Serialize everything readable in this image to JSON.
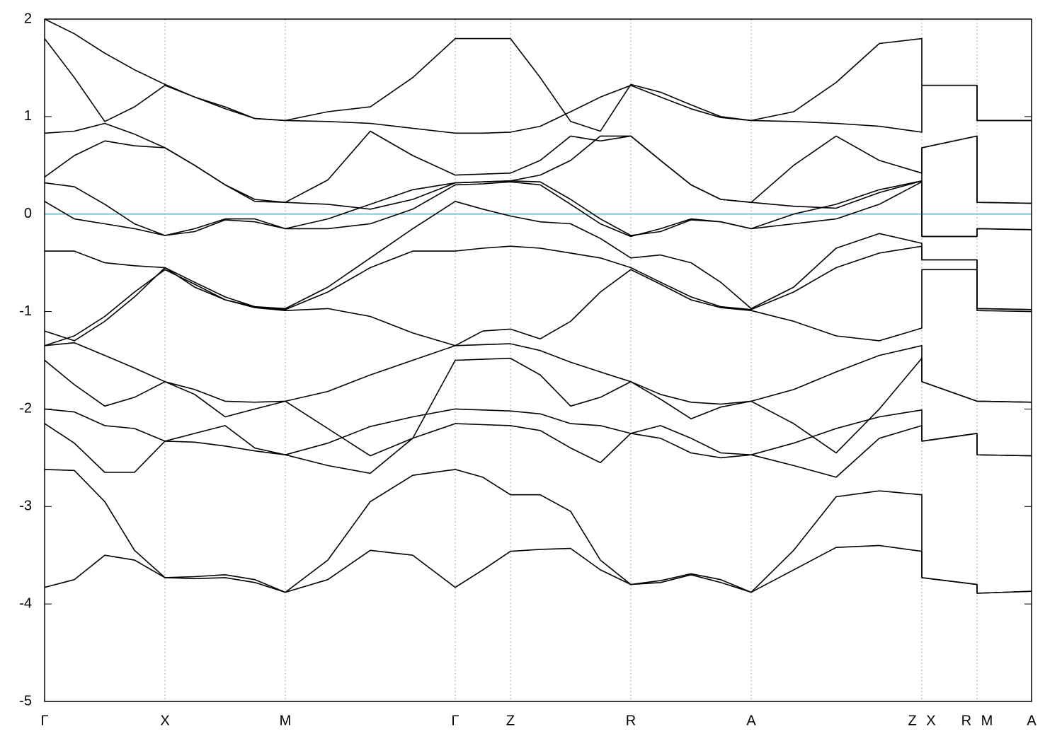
{
  "chart_data": {
    "type": "line",
    "color": "#000000",
    "hline": 0,
    "hline_color": "#5fb3c8",
    "grid": true,
    "xlim": [
      0,
      1394
    ],
    "xticks": [
      {
        "value": 0,
        "label": "Γ"
      },
      {
        "value": 170,
        "label": "X"
      },
      {
        "value": 340,
        "label": "M"
      },
      {
        "value": 580,
        "label": "Γ"
      },
      {
        "value": 658,
        "label": "Z"
      },
      {
        "value": 828,
        "label": "R"
      },
      {
        "value": 998,
        "label": "A"
      },
      {
        "value": 1239,
        "label": "Z X"
      },
      {
        "value": 1317,
        "label": "R M"
      },
      {
        "value": 1394,
        "label": "A"
      }
    ],
    "ylim": [
      -5,
      2
    ],
    "yticks": [
      -5,
      -4,
      -3,
      -2,
      -1,
      0,
      1,
      2
    ],
    "x": [
      0,
      42,
      85,
      127,
      170,
      212,
      255,
      297,
      340,
      400,
      460,
      520,
      580,
      619,
      658,
      700,
      743,
      785,
      828,
      870,
      913,
      955,
      998,
      1058,
      1118,
      1179,
      1239,
      1239,
      1317,
      1317,
      1394
    ],
    "series": [
      {
        "values": [
          -3.83,
          -3.75,
          -3.5,
          -3.55,
          -3.73,
          -3.72,
          -3.7,
          -3.75,
          -3.88,
          -3.75,
          -3.45,
          -3.5,
          -3.83,
          -3.65,
          -3.46,
          -3.44,
          -3.43,
          -3.65,
          -3.8,
          -3.76,
          -3.69,
          -3.75,
          -3.88,
          -3.65,
          -3.42,
          -3.4,
          -3.46,
          -3.73,
          -3.8,
          -3.89,
          -3.87
        ]
      },
      {
        "values": [
          -2.62,
          -2.63,
          -2.95,
          -3.45,
          -3.73,
          -3.74,
          -3.73,
          -3.78,
          -3.88,
          -3.55,
          -2.95,
          -2.68,
          -2.62,
          -2.7,
          -2.88,
          -2.88,
          -3.05,
          -3.55,
          -3.8,
          -3.78,
          -3.7,
          -3.78,
          -3.88,
          -3.45,
          -2.9,
          -2.84,
          -2.88,
          -3.73,
          -3.8,
          -3.89,
          -3.87
        ]
      },
      {
        "values": [
          -2.15,
          -2.35,
          -2.65,
          -2.65,
          -2.33,
          -2.34,
          -2.38,
          -2.43,
          -2.47,
          -2.58,
          -2.66,
          -2.3,
          -2.15,
          -2.16,
          -2.17,
          -2.22,
          -2.4,
          -2.55,
          -2.25,
          -2.3,
          -2.45,
          -2.5,
          -2.47,
          -2.58,
          -2.7,
          -2.3,
          -2.17,
          -2.33,
          -2.25,
          -2.47,
          -2.48
        ]
      },
      {
        "values": [
          -2.0,
          -2.03,
          -2.17,
          -2.2,
          -2.33,
          -2.25,
          -2.17,
          -2.4,
          -2.47,
          -2.35,
          -2.18,
          -2.08,
          -2.0,
          -2.01,
          -2.02,
          -2.05,
          -2.15,
          -2.17,
          -2.25,
          -2.17,
          -2.3,
          -2.45,
          -2.47,
          -2.35,
          -2.2,
          -2.08,
          -2.01,
          -2.33,
          -2.25,
          -2.47,
          -2.48
        ]
      },
      {
        "values": [
          -1.5,
          -1.75,
          -1.97,
          -1.88,
          -1.72,
          -1.8,
          -1.92,
          -1.93,
          -1.92,
          -1.82,
          -1.65,
          -1.5,
          -1.35,
          -1.34,
          -1.33,
          -1.4,
          -1.52,
          -1.62,
          -1.72,
          -1.85,
          -1.93,
          -1.95,
          -1.92,
          -1.8,
          -1.62,
          -1.45,
          -1.35,
          -1.72,
          -1.92,
          -1.92,
          -1.93
        ]
      },
      {
        "values": [
          -1.35,
          -1.32,
          -1.45,
          -1.58,
          -1.72,
          -1.85,
          -2.08,
          -2.0,
          -1.92,
          -2.2,
          -2.48,
          -2.3,
          -1.5,
          -1.49,
          -1.48,
          -1.65,
          -1.97,
          -1.88,
          -1.72,
          -1.9,
          -2.1,
          -1.98,
          -1.92,
          -2.15,
          -2.45,
          -2.0,
          -1.48,
          -1.72,
          -1.92,
          -1.92,
          -1.93
        ]
      },
      {
        "values": [
          -1.2,
          -1.3,
          -1.1,
          -0.85,
          -0.55,
          -0.7,
          -0.85,
          -0.95,
          -0.98,
          -0.8,
          -0.55,
          -0.38,
          -0.38,
          -0.35,
          -0.33,
          -0.35,
          -0.4,
          -0.45,
          -0.55,
          -0.7,
          -0.85,
          -0.95,
          -0.98,
          -0.8,
          -0.55,
          -0.4,
          -0.33,
          -0.47,
          -0.47,
          -0.97,
          -0.98
        ]
      },
      {
        "values": [
          -1.35,
          -1.25,
          -1.05,
          -0.8,
          -0.57,
          -0.72,
          -0.88,
          -0.96,
          -0.99,
          -0.97,
          -1.05,
          -1.22,
          -1.35,
          -1.2,
          -1.18,
          -1.28,
          -1.1,
          -0.8,
          -0.57,
          -0.72,
          -0.88,
          -0.96,
          -0.99,
          -1.1,
          -1.25,
          -1.3,
          -1.17,
          -0.57,
          -0.57,
          -0.99,
          -1.0
        ]
      },
      {
        "values": [
          -0.38,
          -0.38,
          -0.5,
          -0.53,
          -0.55,
          -0.75,
          -0.88,
          -0.95,
          -0.97,
          -0.75,
          -0.45,
          -0.15,
          0.13,
          0.05,
          -0.02,
          -0.08,
          -0.1,
          -0.25,
          -0.45,
          -0.42,
          -0.5,
          -0.7,
          -0.97,
          -0.75,
          -0.35,
          -0.2,
          -0.3,
          -0.47,
          -0.47,
          -0.97,
          -0.98
        ]
      },
      {
        "values": [
          0.13,
          -0.05,
          -0.1,
          -0.15,
          -0.22,
          -0.15,
          -0.05,
          -0.05,
          -0.15,
          -0.15,
          -0.1,
          0.05,
          0.3,
          0.31,
          0.33,
          0.3,
          0.1,
          -0.1,
          -0.23,
          -0.15,
          -0.05,
          -0.08,
          -0.15,
          -0.1,
          -0.05,
          0.1,
          0.33,
          -0.23,
          -0.23,
          -0.15,
          -0.16
        ]
      },
      {
        "values": [
          0.32,
          0.28,
          0.1,
          -0.1,
          -0.22,
          -0.18,
          -0.06,
          -0.08,
          -0.15,
          -0.05,
          0.1,
          0.25,
          0.32,
          0.33,
          0.34,
          0.33,
          0.15,
          -0.05,
          -0.22,
          -0.18,
          -0.06,
          -0.08,
          -0.15,
          0.0,
          0.1,
          0.25,
          0.34,
          -0.23,
          -0.23,
          -0.15,
          -0.16
        ]
      },
      {
        "values": [
          0.38,
          0.6,
          0.75,
          0.7,
          0.68,
          0.5,
          0.3,
          0.15,
          0.12,
          0.1,
          0.05,
          0.15,
          0.32,
          0.33,
          0.34,
          0.4,
          0.55,
          0.8,
          0.8,
          0.55,
          0.3,
          0.15,
          0.12,
          0.08,
          0.06,
          0.22,
          0.34,
          0.68,
          0.8,
          0.12,
          0.11
        ]
      },
      {
        "values": [
          0.83,
          0.85,
          0.93,
          0.82,
          0.68,
          0.5,
          0.3,
          0.13,
          0.12,
          0.35,
          0.85,
          0.6,
          0.4,
          0.41,
          0.42,
          0.55,
          0.8,
          0.75,
          0.8,
          0.55,
          0.3,
          0.15,
          0.12,
          0.5,
          0.8,
          0.55,
          0.42,
          0.68,
          0.8,
          0.12,
          0.11
        ]
      },
      {
        "values": [
          1.8,
          1.4,
          0.95,
          1.1,
          1.32,
          1.2,
          1.1,
          0.98,
          0.96,
          0.95,
          0.93,
          0.88,
          0.83,
          0.83,
          0.84,
          0.9,
          1.05,
          1.2,
          1.32,
          1.2,
          1.08,
          0.99,
          0.96,
          0.95,
          0.93,
          0.9,
          0.84,
          1.32,
          1.32,
          0.96,
          0.96
        ]
      },
      {
        "values": [
          2.0,
          1.85,
          1.65,
          1.48,
          1.33,
          1.2,
          1.08,
          0.98,
          0.96,
          1.05,
          1.1,
          1.4,
          1.8,
          1.8,
          1.8,
          1.4,
          0.95,
          0.85,
          1.33,
          1.25,
          1.12,
          1.0,
          0.96,
          1.05,
          1.35,
          1.75,
          1.8,
          1.32,
          1.32,
          0.96,
          0.96
        ]
      }
    ]
  }
}
